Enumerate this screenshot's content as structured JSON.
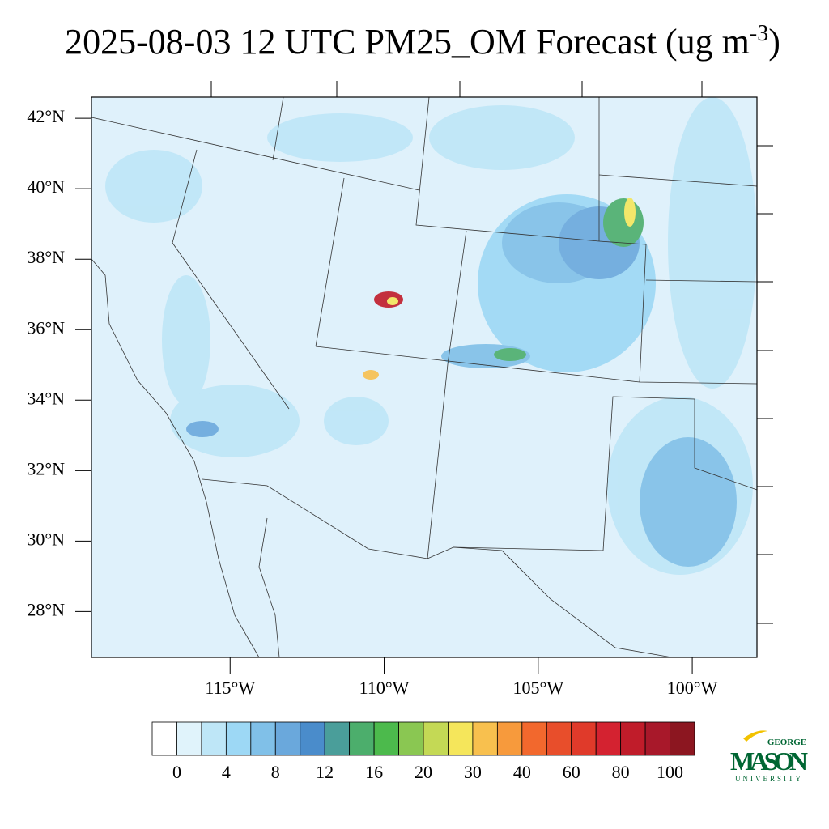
{
  "title": {
    "main": "2025-08-03 12 UTC PM25_OM Forecast (ug m",
    "superscript": "-3",
    "close": ")"
  },
  "map": {
    "lon_range": [
      -119.5,
      -97.9
    ],
    "lat_range": [
      26.7,
      42.6
    ],
    "lat_ticks": [
      {
        "value": 42,
        "label": "42°N"
      },
      {
        "value": 40,
        "label": "40°N"
      },
      {
        "value": 38,
        "label": "38°N"
      },
      {
        "value": 36,
        "label": "36°N"
      },
      {
        "value": 34,
        "label": "34°N"
      },
      {
        "value": 32,
        "label": "32°N"
      },
      {
        "value": 30,
        "label": "30°N"
      },
      {
        "value": 28,
        "label": "28°N"
      }
    ],
    "lon_ticks": [
      {
        "value": -115,
        "label": "115°W"
      },
      {
        "value": -110,
        "label": "110°W"
      },
      {
        "value": -105,
        "label": "105°W"
      },
      {
        "value": -100,
        "label": "100°W"
      }
    ]
  },
  "colorbar": {
    "colors": [
      "#ffffff",
      "#e0f3fb",
      "#bee6f7",
      "#9dd8f5",
      "#80c0e8",
      "#6aa8dc",
      "#4a8ccb",
      "#4a9e9a",
      "#4cae6c",
      "#4cba4c",
      "#8ac752",
      "#c4d955",
      "#f5e65b",
      "#f8c04e",
      "#f79a3c",
      "#f2682d",
      "#e84e2b",
      "#e03a2a",
      "#d42230",
      "#c01c2a",
      "#a8182a",
      "#8c1620"
    ],
    "labels": [
      0,
      4,
      8,
      12,
      16,
      20,
      30,
      40,
      60,
      80,
      100
    ]
  },
  "logo": {
    "top": "GEORGE",
    "name": "MASON",
    "bottom": "UNIVERSITY"
  }
}
